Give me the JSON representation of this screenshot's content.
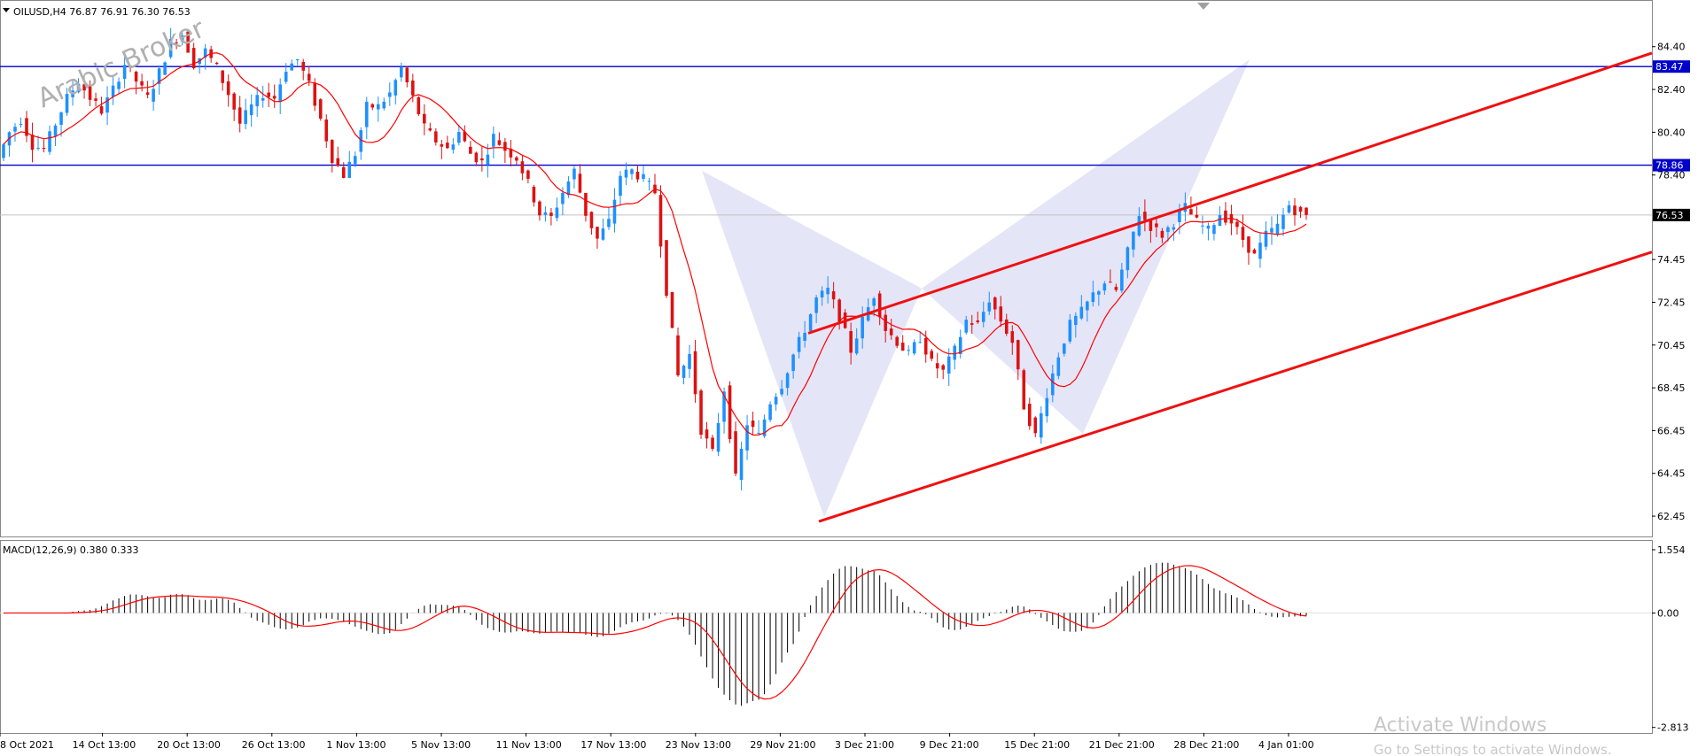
{
  "header": {
    "symbol_line": "OILUSD,H4  76.87 76.91 76.30 76.53",
    "macd_line": "MACD(12,26,9) 0.380 0.333"
  },
  "watermark": "Arabic Broker",
  "activation": {
    "title": "Activate Windows",
    "subtitle": "Go to Settings to activate Windows."
  },
  "colors": {
    "bull_candle": "#1e90ff",
    "bear_candle": "#dd1111",
    "moving_average": "#ff0000",
    "horizontal_lines": "#0000cc",
    "channel_lines": "#ee1111",
    "pattern_fill": "#dcdcf5",
    "macd_signal": "#ff0000",
    "macd_histogram": "#000000",
    "current_price_line": "#c0c0c0"
  },
  "chart_data": [
    {
      "type": "candlestick",
      "symbol": "OILUSD",
      "timeframe": "H4",
      "ohlc_last": {
        "open": 76.87,
        "high": 76.91,
        "low": 76.3,
        "close": 76.53
      },
      "y_ticks": [
        "84.40",
        "82.40",
        "80.40",
        "78.40",
        "74.45",
        "72.45",
        "70.45",
        "68.45",
        "66.45",
        "64.45",
        "62.45"
      ],
      "ylim": [
        61.5,
        86.5
      ],
      "x_tick_labels": [
        "8 Oct 2021",
        "14 Oct 13:00",
        "20 Oct 13:00",
        "26 Oct 13:00",
        "1 Nov 13:00",
        "5 Nov 13:00",
        "11 Nov 13:00",
        "17 Nov 13:00",
        "23 Nov 13:00",
        "29 Nov 21:00",
        "3 Dec 21:00",
        "9 Dec 21:00",
        "15 Dec 21:00",
        "21 Dec 21:00",
        "28 Dec 21:00",
        "4 Jan 01:00"
      ],
      "horizontal_levels": [
        {
          "value": 83.47,
          "label": "83.47"
        },
        {
          "value": 78.86,
          "label": "78.86"
        }
      ],
      "current_price": {
        "value": 76.53,
        "label": "76.53"
      },
      "price_series": [
        79.2,
        80.4,
        81.0,
        79.8,
        79.6,
        80.8,
        82.0,
        82.8,
        82.0,
        81.4,
        82.4,
        83.6,
        82.8,
        82.0,
        83.2,
        84.6,
        85.0,
        83.6,
        84.2,
        83.4,
        82.2,
        80.8,
        81.6,
        82.2,
        82.0,
        83.4,
        83.8,
        82.6,
        81.0,
        79.2,
        78.4,
        79.4,
        81.6,
        81.6,
        82.2,
        83.4,
        82.0,
        80.6,
        80.0,
        79.6,
        80.4,
        79.4,
        79.0,
        80.2,
        79.6,
        79.2,
        78.0,
        76.6,
        76.4,
        77.6,
        78.6,
        76.6,
        75.4,
        76.2,
        78.4,
        78.6,
        78.2,
        77.6,
        73.0,
        69.0,
        70.0,
        66.5,
        65.4,
        68.4,
        64.2,
        66.8,
        66.2,
        67.8,
        68.6,
        70.0,
        71.2,
        72.6,
        73.0,
        71.8,
        70.2,
        71.6,
        72.8,
        71.2,
        70.6,
        70.0,
        70.8,
        69.6,
        69.2,
        70.2,
        71.6,
        71.4,
        72.6,
        71.6,
        70.6,
        67.6,
        66.2,
        68.2,
        70.0,
        71.4,
        72.0,
        72.8,
        73.4,
        73.0,
        74.8,
        76.6,
        76.0,
        75.6,
        76.2,
        76.9,
        76.2,
        75.8,
        76.6,
        76.2,
        75.4,
        74.6,
        75.6,
        76.0,
        77.0,
        76.53
      ],
      "moving_average_period": 20,
      "channel": {
        "upper": [
          {
            "date": "1 Dec",
            "price": 71.0
          },
          {
            "date": "edge",
            "price": 84.1
          }
        ],
        "lower": [
          {
            "date": "29 Nov",
            "price": 62.2
          },
          {
            "date": "edge",
            "price": 74.8
          }
        ]
      },
      "harmonic_pattern": [
        {
          "point": "X",
          "price": 78.6
        },
        {
          "point": "A",
          "price": 62.4
        },
        {
          "point": "B",
          "price": 73.1
        },
        {
          "point": "C",
          "price": 66.3
        },
        {
          "point": "D",
          "price": 83.8
        }
      ]
    },
    {
      "type": "bar",
      "name": "MACD(12,26,9)",
      "values_last": {
        "macd": 0.38,
        "signal": 0.333
      },
      "y_ticks": [
        "1.554",
        "0.00",
        "-2.813"
      ],
      "ylim": [
        -2.95,
        1.75
      ]
    }
  ]
}
